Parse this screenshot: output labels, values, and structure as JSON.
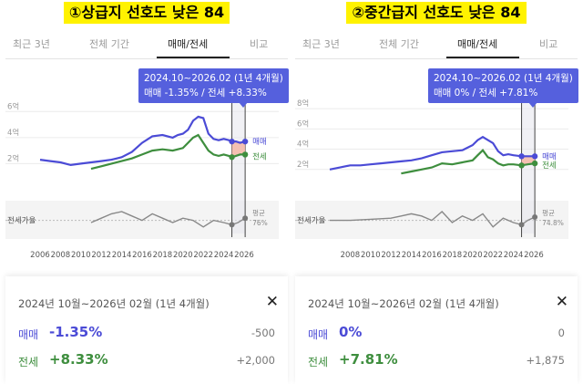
{
  "tabs": [
    "최근 3년",
    "전체 기간",
    "매매/전세",
    "비교"
  ],
  "active_tab": 2,
  "colors": {
    "sale": "#4b4bd6",
    "jeonse": "#3e8e3e",
    "ratio": "#888888",
    "highlight": "#5560dd",
    "gap": "#f4b7a6"
  },
  "panels": [
    {
      "headline": "①상급지 선호도 낮은 84",
      "tooltip": {
        "period": "2024.10~2026.02 (1년 4개월)",
        "changes": "매매 -1.35%  /  전세 +8.33%"
      },
      "series_labels": {
        "sale": "매매",
        "jeonse": "전세"
      },
      "ratio_label": "전세가율",
      "ratio_end_label": [
        "평균",
        "76%"
      ],
      "detail": {
        "period": "2024년 10월~2026년 02월 (1년 4개월)",
        "sale_label": "매매",
        "sale_pct": "-1.35%",
        "sale_amt": "-500",
        "jeonse_label": "전세",
        "jeonse_pct": "+8.33%",
        "jeonse_amt": "+2,000"
      },
      "chart_data": {
        "type": "line",
        "yticks": [
          "6억",
          "4억",
          "2억"
        ],
        "ytick_values": [
          6,
          4,
          2
        ],
        "ylim": [
          0,
          7
        ],
        "xticks": [
          "2006",
          "2008",
          "2010",
          "2012",
          "2014",
          "2016",
          "2018",
          "2020",
          "2022",
          "2024",
          "2026"
        ],
        "xlim": [
          2006,
          2026
        ],
        "highlight_range": [
          2024.8,
          2026.1
        ],
        "series": [
          {
            "name": "매매",
            "x": [
              2006,
              2007,
              2008,
              2009,
              2010,
              2011,
              2012,
              2013,
              2014,
              2015,
              2016,
              2017,
              2018,
              2019,
              2019.5,
              2020,
              2020.5,
              2021,
              2021.5,
              2022,
              2022.5,
              2023,
              2023.5,
              2024,
              2024.5,
              2024.8,
              2025.2,
              2025.6,
              2026.1
            ],
            "y": [
              2.3,
              2.2,
              2.1,
              1.9,
              2.0,
              2.1,
              2.2,
              2.3,
              2.5,
              2.9,
              3.6,
              4.1,
              4.2,
              4.0,
              4.2,
              4.3,
              4.6,
              5.3,
              5.6,
              5.5,
              4.3,
              3.9,
              3.8,
              3.9,
              3.8,
              3.7,
              3.7,
              3.6,
              3.7
            ]
          },
          {
            "name": "전세",
            "x": [
              2011,
              2012,
              2013,
              2014,
              2015,
              2016,
              2017,
              2018,
              2019,
              2020,
              2020.5,
              2021,
              2021.5,
              2022,
              2022.5,
              2023,
              2023.5,
              2024,
              2024.5,
              2024.8,
              2025.2,
              2025.6,
              2026.1
            ],
            "y": [
              1.6,
              1.8,
              2.0,
              2.2,
              2.4,
              2.7,
              3.0,
              3.1,
              3.0,
              3.2,
              3.6,
              4.0,
              4.2,
              3.6,
              3.0,
              2.7,
              2.6,
              2.7,
              2.6,
              2.5,
              2.6,
              2.7,
              2.7
            ]
          }
        ],
        "ratio": {
          "name": "전세가율",
          "x": [
            2011,
            2012,
            2013,
            2014,
            2015,
            2016,
            2017,
            2018,
            2019,
            2020,
            2021,
            2022,
            2023,
            2024,
            2024.8,
            2025.4,
            2026.1
          ],
          "y": [
            70,
            74,
            78,
            80,
            76,
            72,
            78,
            74,
            70,
            74,
            72,
            66,
            72,
            70,
            68,
            70,
            74
          ]
        }
      }
    },
    {
      "headline": "②중간급지 선호도 낮은 84",
      "tooltip": {
        "period": "2024.10~2026.02 (1년 4개월)",
        "changes": "매매 0%  /  전세 +7.81%"
      },
      "series_labels": {
        "sale": "매매",
        "jeonse": "전세"
      },
      "ratio_label": "전세가율",
      "ratio_end_label": [
        "평균",
        "74.8%"
      ],
      "detail": {
        "period": "2024년 10월~2026년 02월 (1년 4개월)",
        "sale_label": "매매",
        "sale_pct": "0%",
        "sale_amt": "0",
        "jeonse_label": "전세",
        "jeonse_pct": "+7.81%",
        "jeonse_amt": "+1,875"
      },
      "chart_data": {
        "type": "line",
        "yticks": [
          "8억",
          "6억",
          "4억",
          "2억"
        ],
        "ytick_values": [
          8,
          6,
          4,
          2
        ],
        "ylim": [
          0,
          9
        ],
        "xticks": [
          "2008",
          "2010",
          "2012",
          "2014",
          "2016",
          "2018",
          "2020",
          "2022",
          "2024",
          "2026"
        ],
        "xlim": [
          2006,
          2026
        ],
        "highlight_range": [
          2024.8,
          2026.1
        ],
        "series": [
          {
            "name": "매매",
            "x": [
              2006,
              2007,
              2008,
              2009,
              2010,
              2011,
              2012,
              2013,
              2014,
              2015,
              2016,
              2017,
              2018,
              2019,
              2020,
              2020.5,
              2021,
              2021.5,
              2022,
              2022.5,
              2023,
              2023.5,
              2024,
              2024.8,
              2025.4,
              2026.1
            ],
            "y": [
              2.0,
              2.2,
              2.4,
              2.4,
              2.5,
              2.6,
              2.7,
              2.8,
              2.9,
              3.1,
              3.4,
              3.7,
              3.8,
              3.9,
              4.4,
              4.9,
              5.2,
              4.9,
              4.6,
              3.8,
              3.4,
              3.5,
              3.4,
              3.3,
              3.3,
              3.3
            ]
          },
          {
            "name": "전세",
            "x": [
              2013,
              2014,
              2015,
              2016,
              2017,
              2018,
              2019,
              2020,
              2020.5,
              2021,
              2021.5,
              2022,
              2022.5,
              2023,
              2023.5,
              2024,
              2024.8,
              2025.4,
              2026.1
            ],
            "y": [
              1.6,
              1.8,
              2.0,
              2.2,
              2.6,
              2.5,
              2.7,
              2.9,
              3.4,
              3.9,
              3.2,
              3.0,
              2.6,
              2.4,
              2.5,
              2.5,
              2.4,
              2.5,
              2.6
            ]
          }
        ],
        "ratio": {
          "name": "전세가율",
          "x": [
            2006,
            2008,
            2010,
            2012,
            2013,
            2014,
            2015,
            2016,
            2017,
            2018,
            2019,
            2020,
            2021,
            2022,
            2023,
            2024,
            2024.8,
            2025.4,
            2026.1
          ],
          "y": [
            72,
            72,
            73,
            74,
            76,
            78,
            76,
            72,
            80,
            70,
            76,
            72,
            78,
            66,
            74,
            70,
            68,
            72,
            75
          ]
        }
      }
    }
  ]
}
